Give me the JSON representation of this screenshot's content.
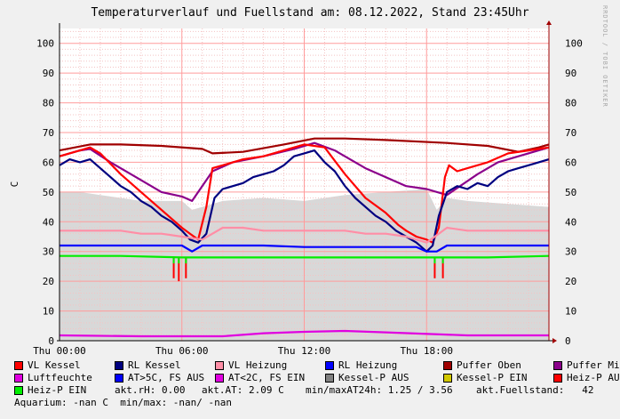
{
  "title": "Temperaturverlauf und Fuellstand am: 08.12.2022, Stand 23:45Uhr",
  "watermark": "RRDTOOL / TOBI OETIKER",
  "colors": {
    "vl_kessel": "#ff0000",
    "rl_kessel": "#000080",
    "vl_heizung": "#ff8ea6",
    "rl_heizung": "#0000ff",
    "puffer_oben": "#a00000",
    "puffer_mitte": "#8b008b",
    "luftfeuchte": "#e000e0",
    "at_gt5": "#0000ff",
    "at_lt2": "#e000e0",
    "kessel_p_aus": "#808080",
    "kessel_p_ein": "#d2c800",
    "heiz_p_aus": "#ff0000",
    "heiz_p_ein": "#00ee00",
    "fill": "#d8d8d8"
  },
  "legend": {
    "row1": [
      {
        "label": "VL Kessel",
        "color": "#ff0000"
      },
      {
        "label": "RL Kessel",
        "color": "#000080"
      },
      {
        "label": "VL Heizung",
        "color": "#ff8ea6"
      },
      {
        "label": "RL Heizung",
        "color": "#0000ff"
      },
      {
        "label": "Puffer Oben",
        "color": "#a00000"
      },
      {
        "label": "Puffer Mitte",
        "color": "#8b008b"
      }
    ],
    "row2": [
      {
        "label": "Luftfeuchte",
        "color": "#e000e0"
      },
      {
        "label": "AT>5C, FS AUS",
        "color": "#0000ff"
      },
      {
        "label": "AT<2C, FS EIN",
        "color": "#e000e0"
      },
      {
        "label": "Kessel-P AUS",
        "color": "#808080"
      },
      {
        "label": "Kessel-P EIN",
        "color": "#d2c800"
      },
      {
        "label": "Heiz-P AUS",
        "color": "#ff0000"
      }
    ],
    "row3_item": {
      "label": "Heiz-P EIN",
      "color": "#00ee00"
    },
    "stat_rh": "akt.rH: 0.00",
    "stat_at": "akt.AT: 2.09 C",
    "stat_minmax": "min/maxAT24h: 1.25 / 3.56",
    "stat_fuell": "akt.Fuellstand:   42",
    "aquarium": "Aquarium: -nan C  min/max: -nan/ -nan"
  },
  "chart_data": {
    "type": "line",
    "ylabel": "C",
    "ylim": [
      0,
      105
    ],
    "yticks": [
      0,
      10,
      20,
      30,
      40,
      50,
      60,
      70,
      80,
      90,
      100
    ],
    "xlim": [
      0,
      24
    ],
    "xticks": [
      {
        "t": 0,
        "label": "Thu 00:00"
      },
      {
        "t": 6,
        "label": "Thu 06:00"
      },
      {
        "t": 12,
        "label": "Thu 12:00"
      },
      {
        "t": 18,
        "label": "Thu 18:00"
      }
    ],
    "series": [
      {
        "name": "Puffer Oben",
        "color": "#a00000",
        "x": [
          0,
          1.5,
          3,
          5,
          7,
          7.5,
          9,
          11,
          12.5,
          14,
          16,
          19,
          21,
          22.5,
          23.5,
          24
        ],
        "y": [
          64,
          66,
          66,
          65.5,
          64.5,
          63,
          63.5,
          66,
          68,
          68,
          67.5,
          66.5,
          65.5,
          63.5,
          65,
          66
        ]
      },
      {
        "name": "Puffer Mitte",
        "color": "#8b008b",
        "x": [
          0,
          1,
          1.5,
          2.5,
          3.5,
          5,
          6,
          6.5,
          7.5,
          8.5,
          10,
          11.5,
          12.5,
          13.5,
          15,
          17,
          18,
          19,
          20.5,
          21.5,
          22.5,
          24
        ],
        "y": [
          62,
          64,
          64.5,
          60,
          56,
          50,
          48.5,
          47,
          57,
          60,
          62,
          64.5,
          66.5,
          64,
          58,
          52,
          51,
          49,
          56,
          60,
          62,
          65
        ]
      },
      {
        "name": "VL Kessel",
        "color": "#ff0000",
        "x": [
          0,
          1,
          1.5,
          2,
          3,
          4,
          5,
          6,
          6.4,
          6.8,
          7.2,
          7.5,
          8,
          9,
          10,
          11,
          12,
          13,
          14,
          15,
          16,
          16.6,
          17,
          17.5,
          18,
          18.3,
          18.6,
          18.9,
          19.1,
          19.5,
          20,
          21,
          22,
          23,
          24
        ],
        "y": [
          62,
          64,
          65,
          63,
          56,
          50,
          44,
          38,
          36,
          34,
          45,
          58,
          59,
          61,
          62,
          64,
          66,
          65,
          56,
          48,
          43,
          39,
          37,
          35,
          34,
          33,
          38,
          55,
          59,
          57,
          58,
          60,
          63,
          64,
          65
        ]
      },
      {
        "name": "RL Kessel",
        "color": "#000080",
        "x": [
          0,
          0.5,
          1,
          1.5,
          2,
          2.5,
          3,
          3.5,
          4,
          4.5,
          5,
          5.5,
          6,
          6.4,
          6.8,
          7.2,
          7.6,
          8,
          8.5,
          9,
          9.5,
          10,
          10.5,
          11,
          11.5,
          12,
          12.5,
          13,
          13.5,
          14,
          14.5,
          15,
          15.5,
          16,
          16.5,
          17,
          17.5,
          18,
          18.3,
          18.6,
          19,
          19.5,
          20,
          20.5,
          21,
          21.5,
          22,
          22.5,
          23,
          23.5,
          24
        ],
        "y": [
          59,
          61,
          60,
          61,
          58,
          55,
          52,
          50,
          47,
          45,
          42,
          40,
          37,
          34,
          33,
          36,
          48,
          51,
          52,
          53,
          55,
          56,
          57,
          59,
          62,
          63,
          64,
          60,
          57,
          52,
          48,
          45,
          42,
          40,
          37,
          35,
          33,
          30,
          32,
          42,
          50,
          52,
          51,
          53,
          52,
          55,
          57,
          58,
          59,
          60,
          61
        ]
      },
      {
        "name": "VL Heizung",
        "color": "#ff8ea6",
        "x": [
          0,
          1,
          2,
          3,
          4,
          5,
          6,
          7,
          8,
          9,
          10,
          11,
          12,
          13,
          14,
          15,
          16,
          17,
          18,
          19,
          20,
          21,
          22,
          23,
          24
        ],
        "y": [
          37,
          37,
          37,
          37,
          36,
          36,
          35,
          34,
          38,
          38,
          37,
          37,
          37,
          37,
          37,
          36,
          36,
          35,
          33,
          38,
          37,
          37,
          37,
          37,
          37
        ]
      },
      {
        "name": "RL Heizung",
        "color": "#0000ff",
        "x": [
          0,
          2,
          4,
          6,
          6.5,
          7,
          8,
          10,
          12,
          14,
          16,
          17.5,
          18,
          18.5,
          19,
          20,
          22,
          24
        ],
        "y": [
          32,
          32,
          32,
          32,
          30,
          32,
          32,
          32,
          31.5,
          31.5,
          31.5,
          31.5,
          30,
          30,
          32,
          32,
          32,
          32
        ]
      },
      {
        "name": "Heiz-P EIN",
        "color": "#00ee00",
        "x": [
          0,
          3,
          6,
          9,
          12,
          15,
          18,
          21,
          24
        ],
        "y": [
          28.5,
          28.5,
          28,
          28,
          28,
          28,
          28,
          28,
          28.5
        ]
      },
      {
        "name": "Luftfeuchte",
        "color": "#e000e0",
        "x": [
          0,
          4,
          8,
          10,
          12,
          14,
          16,
          20,
          24
        ],
        "y": [
          1.8,
          1.5,
          1.5,
          2.5,
          3,
          3.3,
          2.8,
          1.8,
          1.8
        ]
      }
    ],
    "drops": {
      "color": "#ff0000",
      "points": [
        {
          "x": 5.6,
          "y": 21
        },
        {
          "x": 5.85,
          "y": 20
        },
        {
          "x": 6.2,
          "y": 21
        },
        {
          "x": 18.4,
          "y": 21
        },
        {
          "x": 18.8,
          "y": 21
        }
      ]
    },
    "fill_area": {
      "color": "#d8d8d8",
      "x": [
        0,
        1,
        2,
        3,
        4,
        5,
        6,
        6.5,
        7,
        8,
        10,
        12,
        14,
        16,
        18,
        18.5,
        19,
        20,
        22,
        24
      ],
      "y": [
        50,
        50,
        49,
        48,
        47,
        47,
        47,
        44,
        45,
        47,
        48,
        47,
        49,
        50,
        51,
        44,
        48,
        47,
        46,
        45
      ]
    }
  }
}
